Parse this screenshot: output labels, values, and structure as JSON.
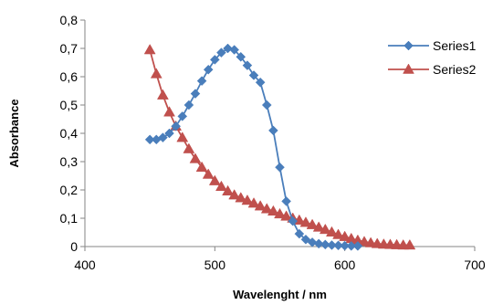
{
  "chart_data": {
    "type": "line",
    "title": "",
    "xlabel": "Wavelenght / nm",
    "ylabel": "Absorbance",
    "xlim": [
      400,
      700
    ],
    "ylim": [
      0,
      0.8
    ],
    "x_ticks": [
      "400",
      "500",
      "600",
      "700"
    ],
    "y_ticks": [
      "0",
      "0,1",
      "0,2",
      "0,3",
      "0,4",
      "0,5",
      "0,6",
      "0,7",
      "0,8"
    ],
    "grid": false,
    "legend_position": "right",
    "series": [
      {
        "name": "Series1",
        "color": "#4A7EBB",
        "marker": "diamond",
        "x": [
          450,
          455,
          460,
          465,
          470,
          475,
          480,
          485,
          490,
          495,
          500,
          505,
          510,
          515,
          520,
          525,
          530,
          535,
          540,
          545,
          550,
          555,
          560,
          565,
          570,
          575,
          580,
          585,
          590,
          595,
          600,
          605,
          610
        ],
        "y": [
          0.378,
          0.378,
          0.385,
          0.4,
          0.425,
          0.46,
          0.5,
          0.54,
          0.585,
          0.625,
          0.66,
          0.685,
          0.7,
          0.695,
          0.67,
          0.64,
          0.605,
          0.58,
          0.5,
          0.41,
          0.28,
          0.16,
          0.09,
          0.045,
          0.025,
          0.015,
          0.01,
          0.007,
          0.005,
          0.004,
          0.003,
          0.002,
          0.002
        ]
      },
      {
        "name": "Series2",
        "color": "#C0504D",
        "marker": "triangle",
        "x": [
          450,
          455,
          460,
          465,
          470,
          475,
          480,
          485,
          490,
          495,
          500,
          505,
          510,
          515,
          520,
          525,
          530,
          535,
          540,
          545,
          550,
          555,
          560,
          565,
          570,
          575,
          580,
          585,
          590,
          595,
          600,
          605,
          610,
          615,
          620,
          625,
          630,
          635,
          640,
          645,
          650
        ],
        "y": [
          0.695,
          0.61,
          0.535,
          0.475,
          0.425,
          0.385,
          0.345,
          0.31,
          0.28,
          0.255,
          0.232,
          0.212,
          0.196,
          0.182,
          0.172,
          0.163,
          0.153,
          0.143,
          0.133,
          0.125,
          0.115,
          0.107,
          0.1,
          0.093,
          0.085,
          0.077,
          0.068,
          0.06,
          0.051,
          0.042,
          0.035,
          0.028,
          0.022,
          0.017,
          0.013,
          0.01,
          0.008,
          0.007,
          0.006,
          0.005,
          0.005
        ]
      }
    ]
  }
}
